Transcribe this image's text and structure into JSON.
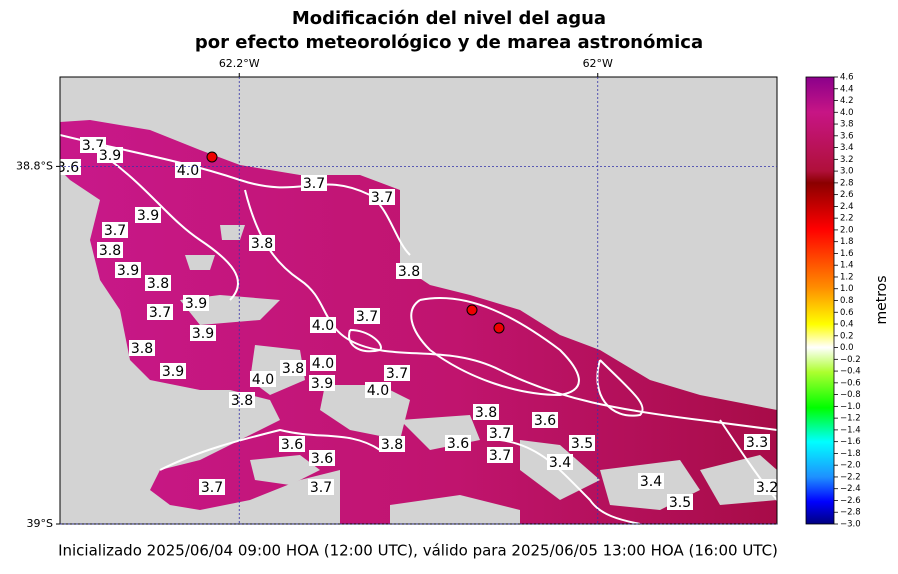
{
  "map": {
    "title_line1": "Modificación del nivel del agua",
    "title_line2": "por efecto meteorológico y de marea astronómica",
    "xlim": [
      -62.3,
      -61.9
    ],
    "ylim": [
      -39.0,
      -38.75
    ],
    "xticks": [
      {
        "value": -62.2,
        "label": "62.2°W"
      },
      {
        "value": -62.0,
        "label": "62°W"
      }
    ],
    "yticks": [
      {
        "value": -38.8,
        "label": "38.8°S"
      },
      {
        "value": -39.0,
        "label": "39°S"
      }
    ],
    "colorbar": {
      "label": "metros",
      "lim": [
        -3.0,
        4.6
      ],
      "ticks": [
        {
          "value": -3.0,
          "label": "−3.0"
        },
        {
          "value": -2.8,
          "label": "−2.8"
        },
        {
          "value": -2.6,
          "label": "−2.6"
        },
        {
          "value": -2.4,
          "label": "−2.4"
        },
        {
          "value": -2.2,
          "label": "−2.2"
        },
        {
          "value": -2.0,
          "label": "−2.0"
        },
        {
          "value": -1.8,
          "label": "−1.8"
        },
        {
          "value": -1.6,
          "label": "−1.6"
        },
        {
          "value": -1.4,
          "label": "−1.4"
        },
        {
          "value": -1.2,
          "label": "−1.2"
        },
        {
          "value": -1.0,
          "label": "−1.0"
        },
        {
          "value": -0.8,
          "label": "−0.8"
        },
        {
          "value": -0.6,
          "label": "−0.6"
        },
        {
          "value": -0.4,
          "label": "−0.4"
        },
        {
          "value": -0.2,
          "label": "−0.2"
        },
        {
          "value": 0.0,
          "label": "0.0"
        },
        0.2,
        0.4,
        0.6,
        0.8,
        {
          "value": 1.0,
          "label": "1.0"
        },
        1.2,
        1.4,
        1.6,
        1.8,
        {
          "value": 2.0,
          "label": "2.0"
        },
        2.2,
        2.4,
        2.6,
        2.8,
        {
          "value": 3.0,
          "label": "3.0"
        },
        3.2,
        3.4,
        3.6,
        3.8,
        {
          "value": 4.0,
          "label": "4.0"
        },
        4.2,
        4.4,
        4.6
      ]
    },
    "contour_labels": [
      "3.6",
      "3.7",
      "3.9",
      "4.0",
      "3.7",
      "3.7",
      "3.8",
      "3.9",
      "3.7",
      "3.8",
      "3.9",
      "3.8",
      "3.8",
      "3.9",
      "3.7",
      "4.0",
      "3.7",
      "3.9",
      "3.8",
      "3.9",
      "4.0",
      "3.8",
      "3.9",
      "4.0",
      "3.7",
      "4.0",
      "3.8",
      "3.8",
      "3.6",
      "3.7",
      "3.6",
      "3.8",
      "3.5",
      "3.6",
      "3.6",
      "3.7",
      "3.4",
      "3.7",
      "3.7",
      "3.4",
      "3.5",
      "3.3",
      "3.2"
    ],
    "footer": "Inicializado 2025/06/04 09:00 HOA (12:00 UTC), válido para 2025/06/05 13:00 HOA (16:00 UTC)"
  }
}
